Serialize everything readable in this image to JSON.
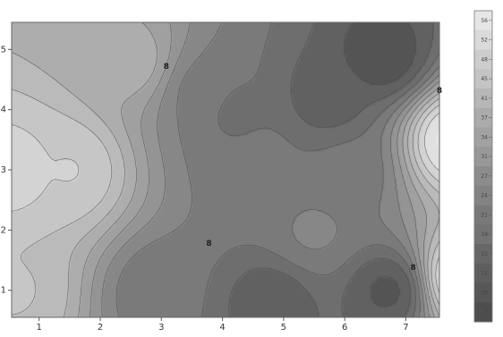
{
  "chart_data": {
    "type": "contour",
    "title": "",
    "xlabel": "",
    "ylabel": "",
    "xlim": [
      0.55,
      7.55
    ],
    "ylim": [
      0.55,
      5.45
    ],
    "x_ticks": [
      {
        "value": 1,
        "label": "1"
      },
      {
        "value": 2,
        "label": "2"
      },
      {
        "value": 3,
        "label": "3"
      },
      {
        "value": 4,
        "label": "4"
      },
      {
        "value": 5,
        "label": "5"
      },
      {
        "value": 6,
        "label": "6"
      },
      {
        "value": 7,
        "label": "7"
      }
    ],
    "y_ticks": [
      {
        "value": 1,
        "label": "1"
      },
      {
        "value": 2,
        "label": "2"
      },
      {
        "value": 3,
        "label": "3"
      },
      {
        "value": 4,
        "label": "4"
      },
      {
        "value": 5,
        "label": "5"
      }
    ],
    "z_min": 7,
    "z_max": 56,
    "grayscale": true,
    "colorbar": {
      "placement": "right",
      "levels": [
        "56",
        "52",
        "48",
        "45",
        "41",
        "37",
        "34",
        "31",
        "27",
        "24",
        "21",
        "19",
        "15",
        "12",
        "10",
        "7"
      ]
    },
    "contour_labels": [
      {
        "text": "8",
        "x": 3.08,
        "y": 4.72
      },
      {
        "text": "8",
        "x": 7.55,
        "y": 4.32
      },
      {
        "text": "8",
        "x": 3.78,
        "y": 1.78
      },
      {
        "text": "8",
        "x": 7.12,
        "y": 1.38
      }
    ],
    "features": {
      "high": [
        {
          "x": 0.5,
          "y": 3.0,
          "z": 50
        },
        {
          "x": 0.6,
          "y": 1.0,
          "z": 44
        },
        {
          "x": 1.5,
          "y": 3.0,
          "z": 48
        },
        {
          "x": 2.5,
          "y": 4.8,
          "z": 38
        },
        {
          "x": 7.8,
          "y": 3.5,
          "z": 58
        },
        {
          "x": 7.9,
          "y": 1.2,
          "z": 55
        }
      ],
      "low": [
        {
          "x": 6.6,
          "y": 4.9,
          "z": 8
        },
        {
          "x": 5.7,
          "y": 4.2,
          "z": 12
        },
        {
          "x": 4.8,
          "y": 0.8,
          "z": 12
        },
        {
          "x": 6.7,
          "y": 1.0,
          "z": 10
        },
        {
          "x": 4.2,
          "y": 4.0,
          "z": 18
        },
        {
          "x": 3.7,
          "y": 4.3,
          "z": 22
        },
        {
          "x": 4.6,
          "y": 3.2,
          "z": 20
        },
        {
          "x": 3.0,
          "y": 1.0,
          "z": 20
        },
        {
          "x": 6.0,
          "y": 3.0,
          "z": 20
        },
        {
          "x": 5.5,
          "y": 2.0,
          "z": 24
        }
      ]
    }
  }
}
